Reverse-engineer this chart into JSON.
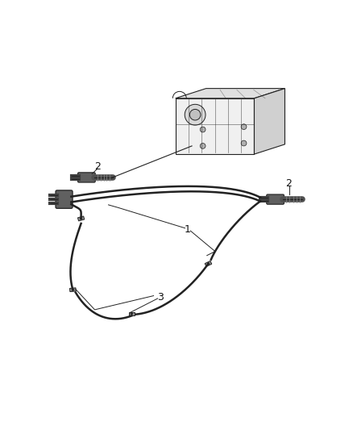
{
  "background_color": "#ffffff",
  "line_color": "#222222",
  "label_color": "#111111",
  "fig_width": 4.38,
  "fig_height": 5.33,
  "dpi": 100
}
